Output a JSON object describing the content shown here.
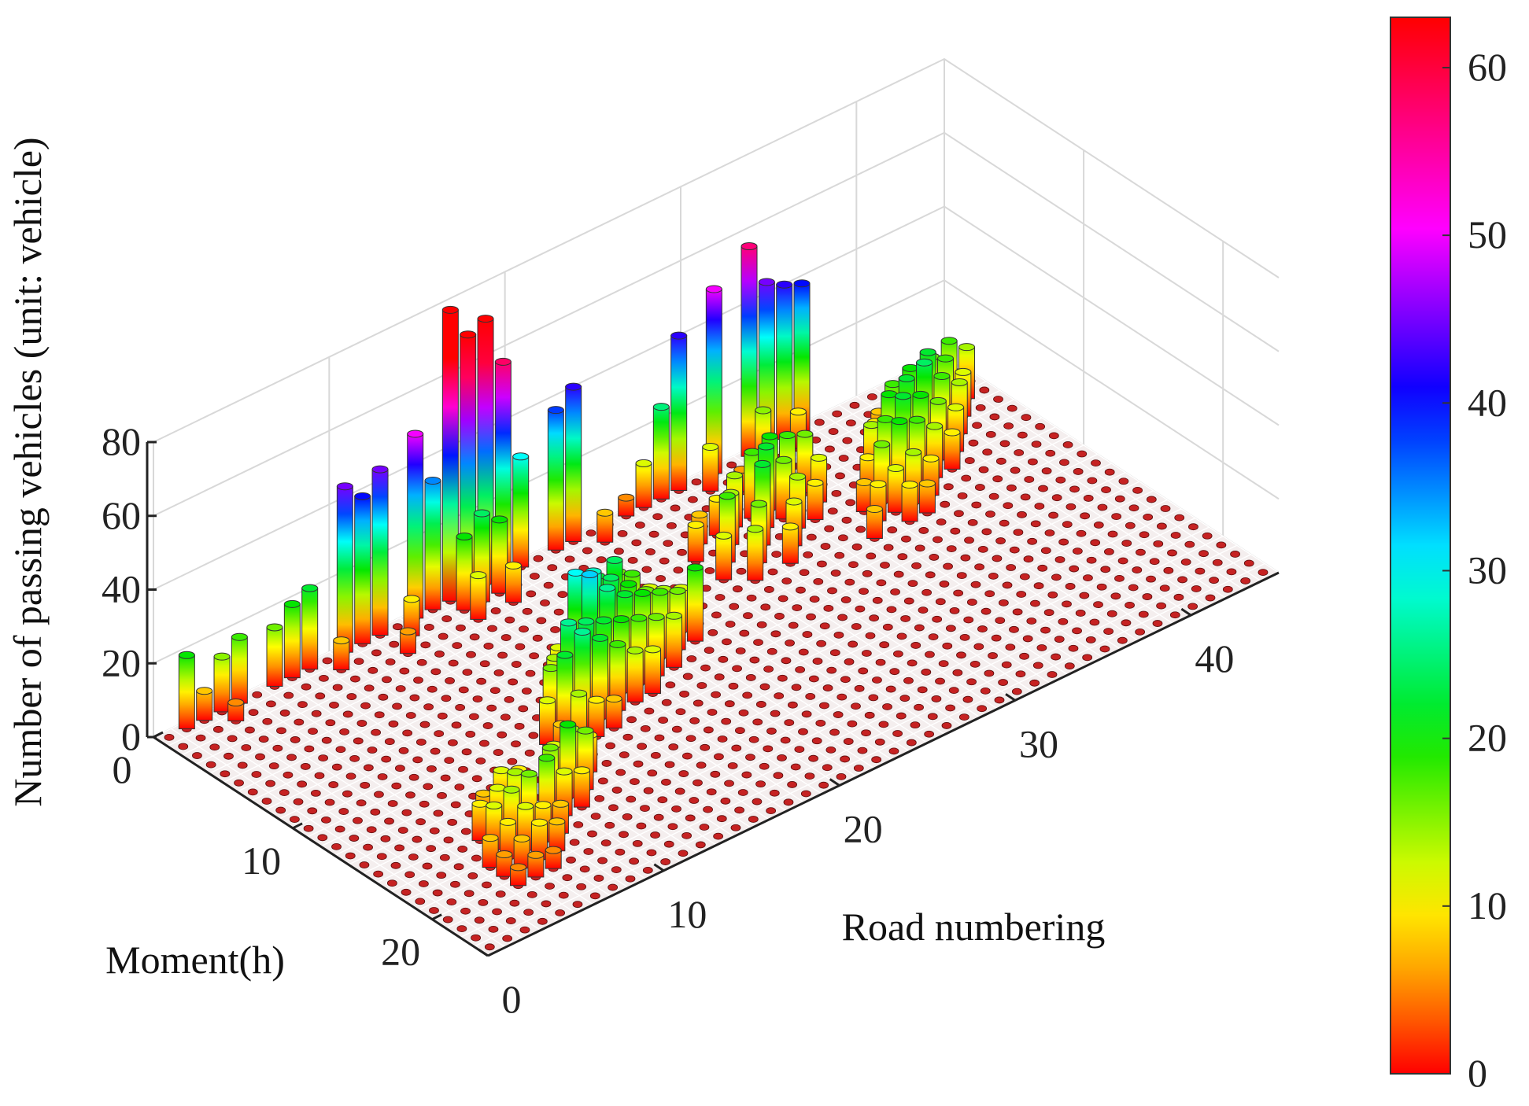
{
  "chart_data": {
    "type": "bar3d",
    "xlabel": "Road numbering",
    "ylabel": "Moment(h)",
    "zlabel": "Number of passing vehicles (unit: vehicle)",
    "x_range": [
      0,
      45
    ],
    "y_range": [
      0,
      24
    ],
    "zlim": [
      0,
      80
    ],
    "x_ticks": [
      "0",
      "10",
      "20",
      "30",
      "40"
    ],
    "y_ticks": [
      "0",
      "10",
      "20"
    ],
    "z_ticks": [
      "0",
      "20",
      "40",
      "60",
      "80"
    ],
    "colorbar": {
      "colormap": "red-orange-yellow-green-cyan-blue-magenta-red",
      "limits": [
        0,
        63
      ],
      "ticks": [
        "0",
        "10",
        "20",
        "30",
        "40",
        "50",
        "60"
      ]
    },
    "grid": true,
    "series": [
      {
        "bars": [
          {
            "hour": 0,
            "road": 1,
            "value": 20
          },
          {
            "hour": 0,
            "road": 2,
            "value": 8
          },
          {
            "hour": 0,
            "road": 3,
            "value": 15
          },
          {
            "hour": 0,
            "road": 4,
            "value": 18
          },
          {
            "hour": 0,
            "road": 6,
            "value": 16
          },
          {
            "hour": 0,
            "road": 7,
            "value": 20
          },
          {
            "hour": 0,
            "road": 8,
            "value": 22
          },
          {
            "hour": 0,
            "road": 10,
            "value": 45
          },
          {
            "hour": 0,
            "road": 11,
            "value": 40
          },
          {
            "hour": 0,
            "road": 12,
            "value": 45
          },
          {
            "hour": 0,
            "road": 14,
            "value": 50
          },
          {
            "hour": 0,
            "road": 15,
            "value": 35
          },
          {
            "hour": 0,
            "road": 16,
            "value": 79
          },
          {
            "hour": 0,
            "road": 17,
            "value": 70
          },
          {
            "hour": 0,
            "road": 18,
            "value": 72
          },
          {
            "hour": 0,
            "road": 19,
            "value": 58
          },
          {
            "hour": 0,
            "road": 20,
            "value": 30
          },
          {
            "hour": 0,
            "road": 22,
            "value": 38
          },
          {
            "hour": 0,
            "road": 23,
            "value": 42
          },
          {
            "hour": 0,
            "road": 26,
            "value": 5
          },
          {
            "hour": 0,
            "road": 27,
            "value": 12
          },
          {
            "hour": 0,
            "road": 28,
            "value": 25
          },
          {
            "hour": 0,
            "road": 29,
            "value": 42
          },
          {
            "hour": 0,
            "road": 31,
            "value": 50
          },
          {
            "hour": 0,
            "road": 33,
            "value": 57
          },
          {
            "hour": 0,
            "road": 34,
            "value": 45
          },
          {
            "hour": 0,
            "road": 35,
            "value": 42
          },
          {
            "hour": 0,
            "road": 36,
            "value": 40
          },
          {
            "hour": 1,
            "road": 3,
            "value": 5
          },
          {
            "hour": 1,
            "road": 9,
            "value": 8
          },
          {
            "hour": 1,
            "road": 13,
            "value": 10
          },
          {
            "hour": 1,
            "road": 16,
            "value": 20
          },
          {
            "hour": 1,
            "road": 17,
            "value": 24
          },
          {
            "hour": 1,
            "road": 18,
            "value": 20
          },
          {
            "hour": 1,
            "road": 24,
            "value": 8
          },
          {
            "hour": 1,
            "road": 30,
            "value": 12
          },
          {
            "hour": 1,
            "road": 33,
            "value": 15
          },
          {
            "hour": 1,
            "road": 35,
            "value": 10
          },
          {
            "hour": 2,
            "road": 12,
            "value": 6
          },
          {
            "hour": 2,
            "road": 16,
            "value": 12
          },
          {
            "hour": 2,
            "road": 18,
            "value": 10
          },
          {
            "hour": 2,
            "road": 31,
            "value": 6
          },
          {
            "hour": 4,
            "road": 27,
            "value": 8
          },
          {
            "hour": 4,
            "road": 28,
            "value": 10
          },
          {
            "hour": 4,
            "road": 29,
            "value": 14
          },
          {
            "hour": 4,
            "road": 30,
            "value": 18
          },
          {
            "hour": 4,
            "road": 31,
            "value": 20
          },
          {
            "hour": 4,
            "road": 32,
            "value": 18
          },
          {
            "hour": 4,
            "road": 33,
            "value": 16
          },
          {
            "hour": 5,
            "road": 26,
            "value": 10
          },
          {
            "hour": 5,
            "road": 28,
            "value": 14
          },
          {
            "hour": 5,
            "road": 30,
            "value": 22
          },
          {
            "hour": 5,
            "road": 31,
            "value": 16
          },
          {
            "hour": 5,
            "road": 33,
            "value": 12
          },
          {
            "hour": 6,
            "road": 27,
            "value": 18
          },
          {
            "hour": 6,
            "road": 29,
            "value": 22
          },
          {
            "hour": 6,
            "road": 31,
            "value": 14
          },
          {
            "hour": 6,
            "road": 32,
            "value": 10
          },
          {
            "hour": 7,
            "road": 18,
            "value": 10
          },
          {
            "hour": 7,
            "road": 19,
            "value": 14
          },
          {
            "hour": 7,
            "road": 20,
            "value": 16
          },
          {
            "hour": 7,
            "road": 26,
            "value": 12
          },
          {
            "hour": 7,
            "road": 28,
            "value": 16
          },
          {
            "hour": 7,
            "road": 30,
            "value": 12
          },
          {
            "hour": 8,
            "road": 17,
            "value": 16
          },
          {
            "hour": 8,
            "road": 18,
            "value": 22
          },
          {
            "hour": 8,
            "road": 19,
            "value": 24
          },
          {
            "hour": 8,
            "road": 20,
            "value": 18
          },
          {
            "hour": 8,
            "road": 21,
            "value": 12
          },
          {
            "hour": 8,
            "road": 27,
            "value": 14
          },
          {
            "hour": 8,
            "road": 29,
            "value": 10
          },
          {
            "hour": 9,
            "road": 15,
            "value": 12
          },
          {
            "hour": 9,
            "road": 16,
            "value": 30
          },
          {
            "hour": 9,
            "road": 17,
            "value": 28
          },
          {
            "hour": 9,
            "road": 18,
            "value": 24
          },
          {
            "hour": 9,
            "road": 19,
            "value": 20
          },
          {
            "hour": 9,
            "road": 20,
            "value": 16
          },
          {
            "hour": 9,
            "road": 21,
            "value": 14
          },
          {
            "hour": 9,
            "road": 22,
            "value": 12
          },
          {
            "hour": 10,
            "road": 14,
            "value": 14
          },
          {
            "hour": 10,
            "road": 15,
            "value": 18
          },
          {
            "hour": 10,
            "road": 16,
            "value": 32
          },
          {
            "hour": 10,
            "road": 17,
            "value": 26
          },
          {
            "hour": 10,
            "road": 18,
            "value": 22
          },
          {
            "hour": 10,
            "road": 19,
            "value": 20
          },
          {
            "hour": 10,
            "road": 20,
            "value": 18
          },
          {
            "hour": 10,
            "road": 21,
            "value": 16
          },
          {
            "hour": 10,
            "road": 22,
            "value": 20
          },
          {
            "hour": 11,
            "road": 13,
            "value": 16
          },
          {
            "hour": 11,
            "road": 14,
            "value": 26
          },
          {
            "hour": 11,
            "road": 15,
            "value": 24
          },
          {
            "hour": 11,
            "road": 16,
            "value": 22
          },
          {
            "hour": 11,
            "road": 17,
            "value": 20
          },
          {
            "hour": 11,
            "road": 18,
            "value": 18
          },
          {
            "hour": 11,
            "road": 19,
            "value": 16
          },
          {
            "hour": 11,
            "road": 20,
            "value": 14
          },
          {
            "hour": 12,
            "road": 12,
            "value": 12
          },
          {
            "hour": 12,
            "road": 13,
            "value": 22
          },
          {
            "hour": 12,
            "road": 14,
            "value": 26
          },
          {
            "hour": 12,
            "road": 15,
            "value": 22
          },
          {
            "hour": 12,
            "road": 16,
            "value": 18
          },
          {
            "hour": 12,
            "road": 17,
            "value": 14
          },
          {
            "hour": 12,
            "road": 18,
            "value": 12
          },
          {
            "hour": 13,
            "road": 12,
            "value": 8
          },
          {
            "hour": 13,
            "road": 13,
            "value": 14
          },
          {
            "hour": 13,
            "road": 14,
            "value": 10
          },
          {
            "hour": 13,
            "road": 15,
            "value": 8
          },
          {
            "hour": 15,
            "road": 6,
            "value": 8
          },
          {
            "hour": 15,
            "road": 7,
            "value": 12
          },
          {
            "hour": 15,
            "road": 8,
            "value": 10
          },
          {
            "hour": 15,
            "road": 10,
            "value": 12
          },
          {
            "hour": 15,
            "road": 11,
            "value": 14
          },
          {
            "hour": 15,
            "road": 12,
            "value": 10
          },
          {
            "hour": 16,
            "road": 5,
            "value": 10
          },
          {
            "hour": 16,
            "road": 6,
            "value": 12
          },
          {
            "hour": 16,
            "road": 7,
            "value": 14
          },
          {
            "hour": 16,
            "road": 9,
            "value": 16
          },
          {
            "hour": 16,
            "road": 10,
            "value": 20
          },
          {
            "hour": 16,
            "road": 11,
            "value": 16
          },
          {
            "hour": 17,
            "road": 5,
            "value": 12
          },
          {
            "hour": 17,
            "road": 6,
            "value": 14
          },
          {
            "hour": 17,
            "road": 7,
            "value": 16
          },
          {
            "hour": 17,
            "road": 8,
            "value": 18
          },
          {
            "hour": 17,
            "road": 9,
            "value": 12
          },
          {
            "hour": 17,
            "road": 10,
            "value": 10
          },
          {
            "hour": 18,
            "road": 4,
            "value": 8
          },
          {
            "hour": 18,
            "road": 5,
            "value": 10
          },
          {
            "hour": 18,
            "road": 6,
            "value": 12
          },
          {
            "hour": 18,
            "road": 7,
            "value": 10
          },
          {
            "hour": 18,
            "road": 8,
            "value": 8
          },
          {
            "hour": 19,
            "road": 4,
            "value": 6
          },
          {
            "hour": 19,
            "road": 5,
            "value": 8
          },
          {
            "hour": 19,
            "road": 6,
            "value": 10
          },
          {
            "hour": 19,
            "road": 7,
            "value": 8
          },
          {
            "hour": 20,
            "road": 4,
            "value": 5
          },
          {
            "hour": 20,
            "road": 5,
            "value": 6
          },
          {
            "hour": 20,
            "road": 6,
            "value": 5
          },
          {
            "hour": 3,
            "road": 38,
            "value": 8
          },
          {
            "hour": 3,
            "road": 39,
            "value": 12
          },
          {
            "hour": 3,
            "road": 40,
            "value": 14
          },
          {
            "hour": 3,
            "road": 41,
            "value": 16
          },
          {
            "hour": 3,
            "road": 42,
            "value": 18
          },
          {
            "hour": 3,
            "road": 43,
            "value": 14
          },
          {
            "hour": 4,
            "road": 37,
            "value": 10
          },
          {
            "hour": 4,
            "road": 38,
            "value": 18
          },
          {
            "hour": 4,
            "road": 39,
            "value": 20
          },
          {
            "hour": 4,
            "road": 40,
            "value": 22
          },
          {
            "hour": 4,
            "road": 41,
            "value": 18
          },
          {
            "hour": 4,
            "road": 42,
            "value": 12
          },
          {
            "hour": 5,
            "road": 36,
            "value": 14
          },
          {
            "hour": 5,
            "road": 37,
            "value": 20
          },
          {
            "hour": 5,
            "road": 38,
            "value": 22
          },
          {
            "hour": 5,
            "road": 39,
            "value": 24
          },
          {
            "hour": 5,
            "road": 40,
            "value": 18
          },
          {
            "hour": 5,
            "road": 41,
            "value": 14
          },
          {
            "hour": 6,
            "road": 35,
            "value": 10
          },
          {
            "hour": 6,
            "road": 36,
            "value": 18
          },
          {
            "hour": 6,
            "road": 37,
            "value": 22
          },
          {
            "hour": 6,
            "road": 38,
            "value": 20
          },
          {
            "hour": 6,
            "road": 39,
            "value": 16
          },
          {
            "hour": 6,
            "road": 40,
            "value": 12
          },
          {
            "hour": 7,
            "road": 34,
            "value": 8
          },
          {
            "hour": 7,
            "road": 35,
            "value": 16
          },
          {
            "hour": 7,
            "road": 36,
            "value": 20
          },
          {
            "hour": 7,
            "road": 37,
            "value": 18
          },
          {
            "hour": 7,
            "road": 38,
            "value": 14
          },
          {
            "hour": 7,
            "road": 39,
            "value": 10
          },
          {
            "hour": 8,
            "road": 34,
            "value": 10
          },
          {
            "hour": 8,
            "road": 35,
            "value": 12
          },
          {
            "hour": 8,
            "road": 36,
            "value": 14
          },
          {
            "hour": 8,
            "road": 37,
            "value": 10
          },
          {
            "hour": 9,
            "road": 33,
            "value": 8
          },
          {
            "hour": 9,
            "road": 35,
            "value": 10
          },
          {
            "hour": 9,
            "road": 36,
            "value": 8
          }
        ]
      }
    ]
  }
}
